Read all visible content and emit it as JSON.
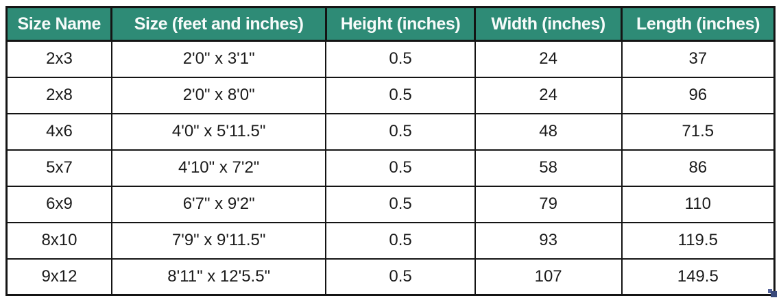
{
  "table": {
    "headers": [
      "Size Name",
      "Size (feet and inches)",
      "Height (inches)",
      "Width (inches)",
      "Length (inches)"
    ],
    "rows": [
      [
        "2x3",
        "2'0\" x 3'1\"",
        "0.5",
        "24",
        "37"
      ],
      [
        "2x8",
        "2'0\" x 8'0\"",
        "0.5",
        "24",
        "96"
      ],
      [
        "4x6",
        "4'0\" x 5'11.5\"",
        "0.5",
        "48",
        "71.5"
      ],
      [
        "5x7",
        "4'10\" x 7'2\"",
        "0.5",
        "58",
        "86"
      ],
      [
        "6x9",
        "6'7\" x 9'2\"",
        "0.5",
        "79",
        "110"
      ],
      [
        "8x10",
        "7'9\" x 9'11.5\"",
        "0.5",
        "93",
        "119.5"
      ],
      [
        "9x12",
        "8'11\" x 12'5.5\"",
        "0.5",
        "107",
        "149.5"
      ]
    ]
  },
  "colors": {
    "header_background": "#2E8B76",
    "header_text": "#F7FBFA",
    "grid_border": "#141414",
    "body_text": "#1B1B1B",
    "resize_handle": "#3A4A7C"
  },
  "icons": {
    "resize_handle": "resize-handle-icon"
  },
  "chart_data": {
    "type": "table",
    "title": "",
    "columns": [
      "Size Name",
      "Size (feet and inches)",
      "Height (inches)",
      "Width (inches)",
      "Length (inches)"
    ],
    "rows": [
      {
        "size_name": "2x3",
        "size_feet_inches": "2'0\" x 3'1\"",
        "height_in": 0.5,
        "width_in": 24,
        "length_in": 37
      },
      {
        "size_name": "2x8",
        "size_feet_inches": "2'0\" x 8'0\"",
        "height_in": 0.5,
        "width_in": 24,
        "length_in": 96
      },
      {
        "size_name": "4x6",
        "size_feet_inches": "4'0\" x 5'11.5\"",
        "height_in": 0.5,
        "width_in": 48,
        "length_in": 71.5
      },
      {
        "size_name": "5x7",
        "size_feet_inches": "4'10\" x 7'2\"",
        "height_in": 0.5,
        "width_in": 58,
        "length_in": 86
      },
      {
        "size_name": "6x9",
        "size_feet_inches": "6'7\" x 9'2\"",
        "height_in": 0.5,
        "width_in": 79,
        "length_in": 110
      },
      {
        "size_name": "8x10",
        "size_feet_inches": "7'9\" x 9'11.5\"",
        "height_in": 0.5,
        "width_in": 93,
        "length_in": 119.5
      },
      {
        "size_name": "9x12",
        "size_feet_inches": "8'11\" x 12'5.5\"",
        "height_in": 0.5,
        "width_in": 107,
        "length_in": 149.5
      }
    ]
  }
}
